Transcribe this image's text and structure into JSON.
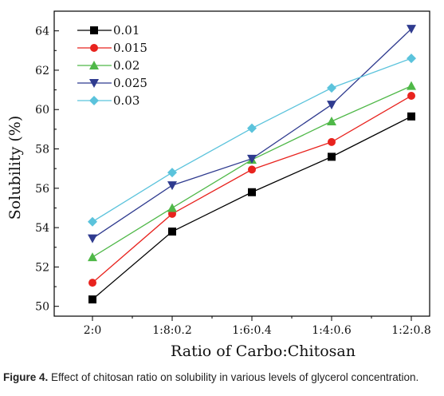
{
  "chart_data": {
    "type": "line",
    "categories": [
      "2:0",
      "1:8:0.2",
      "1:6:0.4",
      "1:4:0.6",
      "1:2:0.8"
    ],
    "xlabel": "Ratio of Carbo:Chitosan",
    "ylabel": "Solubility (%)",
    "ylim": [
      49.5,
      65
    ],
    "yticks": [
      50,
      52,
      54,
      56,
      58,
      60,
      62,
      64
    ],
    "legend_position": "top-left",
    "series": [
      {
        "name": "0.01",
        "color": "#000000",
        "marker": "square",
        "values": [
          50.35,
          53.8,
          55.8,
          57.6,
          59.65
        ]
      },
      {
        "name": "0.015",
        "color": "#e8231e",
        "marker": "circle",
        "values": [
          51.2,
          54.7,
          56.95,
          58.35,
          60.7
        ]
      },
      {
        "name": "0.02",
        "color": "#4fb848",
        "marker": "triangle-up",
        "values": [
          52.5,
          55.0,
          57.45,
          59.4,
          61.2
        ]
      },
      {
        "name": "0.025",
        "color": "#2f3b8f",
        "marker": "triangle-down",
        "values": [
          53.45,
          56.15,
          57.5,
          60.25,
          64.1
        ]
      },
      {
        "name": "0.03",
        "color": "#5bc3dc",
        "marker": "diamond",
        "values": [
          54.3,
          56.8,
          59.05,
          61.1,
          62.6
        ]
      }
    ]
  },
  "caption": {
    "label": "Figure 4.",
    "text": "Effect of chitosan ratio on solubility in various levels of glycerol concentration."
  }
}
